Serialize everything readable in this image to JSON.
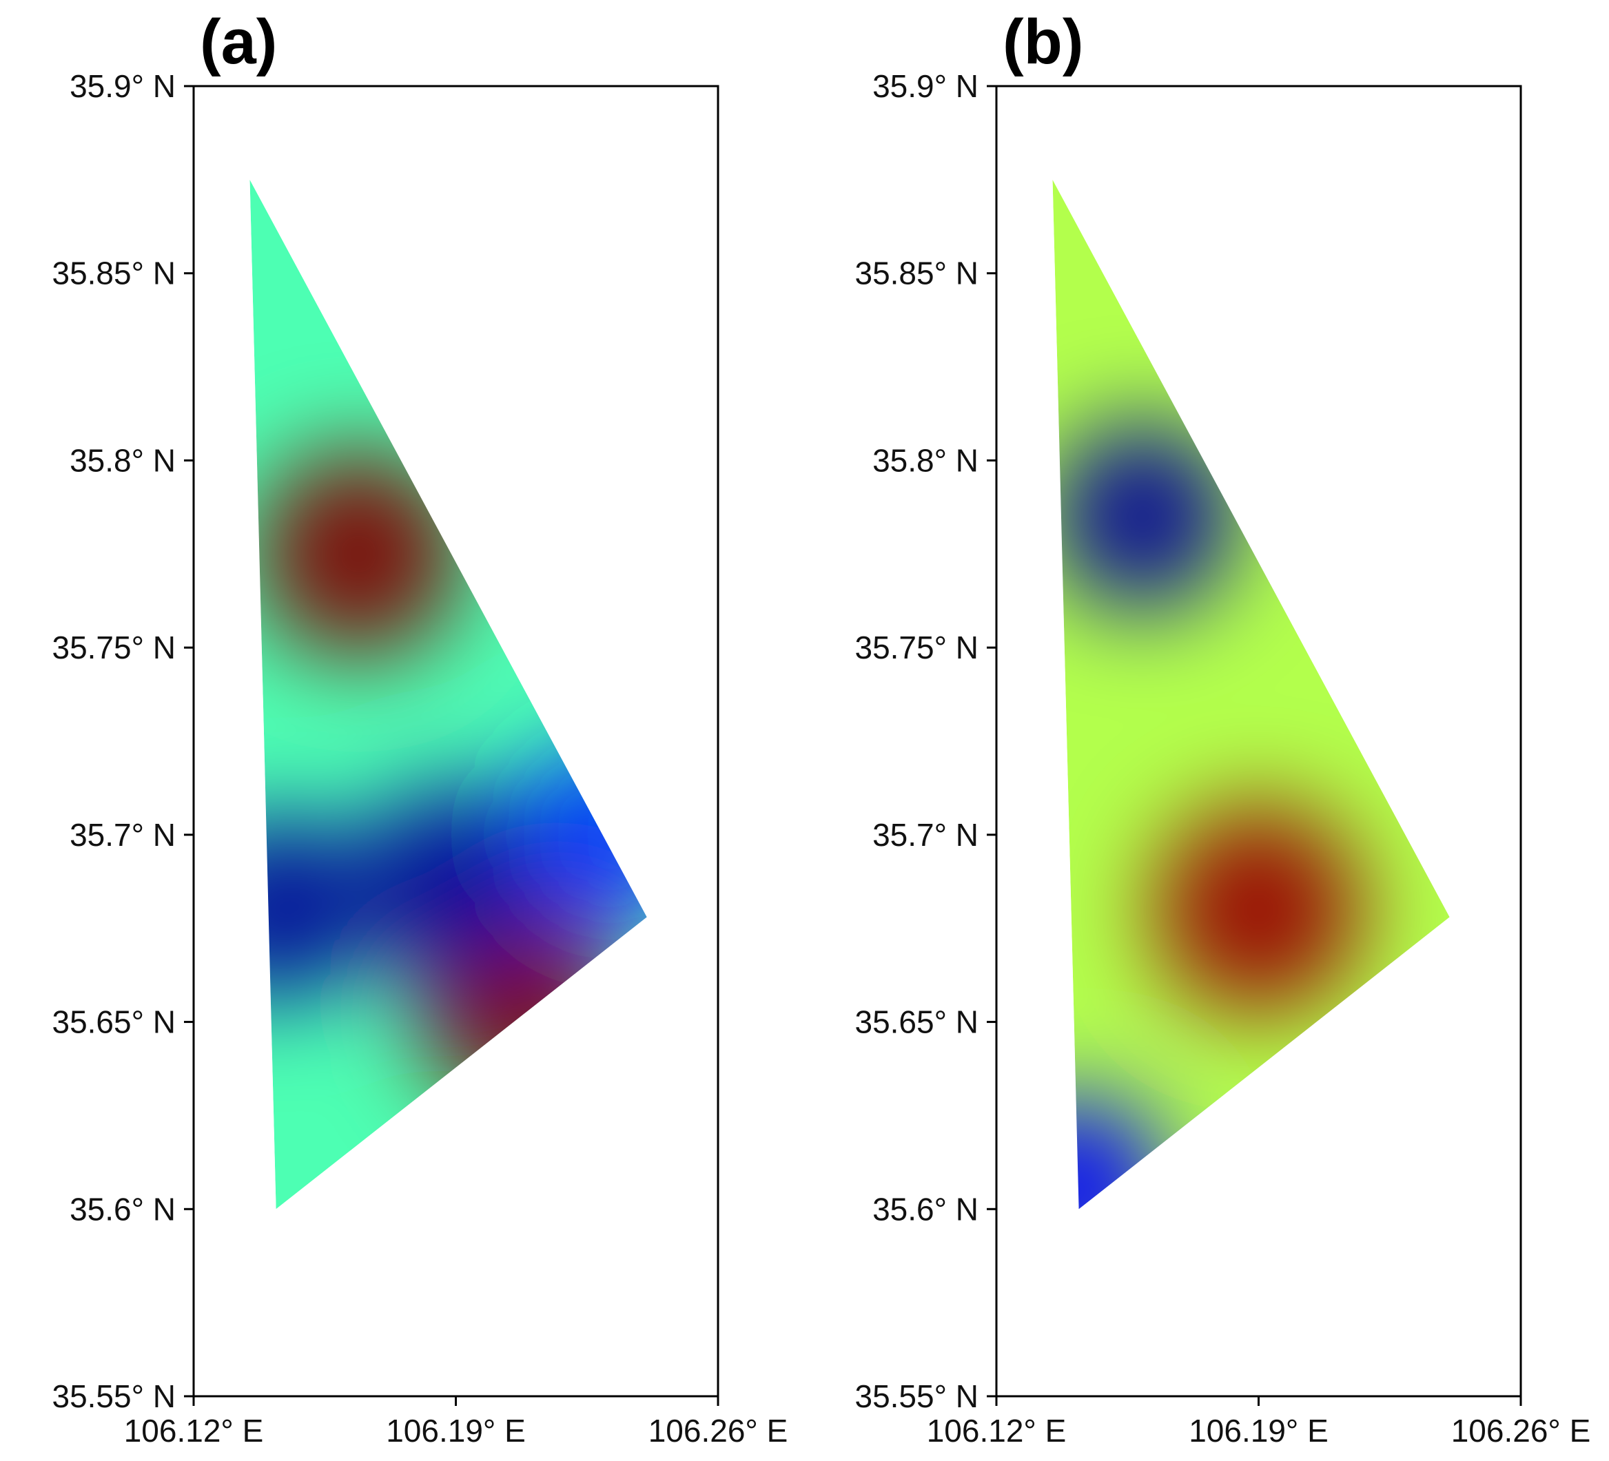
{
  "chart_data": [
    {
      "type": "heatmap",
      "panel_label": "(a)",
      "xlim": [
        106.12,
        106.26
      ],
      "ylim": [
        35.55,
        35.9
      ],
      "x_ticks": [
        {
          "value": 106.12,
          "label": "106.12° E"
        },
        {
          "value": 106.19,
          "label": "106.19° E"
        },
        {
          "value": 106.26,
          "label": "106.26° E"
        }
      ],
      "y_ticks": [
        {
          "value": 35.55,
          "label": "35.55° N"
        },
        {
          "value": 35.6,
          "label": "35.6° N"
        },
        {
          "value": 35.65,
          "label": "35.65° N"
        },
        {
          "value": 35.7,
          "label": "35.7° N"
        },
        {
          "value": 35.75,
          "label": "35.75° N"
        },
        {
          "value": 35.8,
          "label": "35.8° N"
        },
        {
          "value": 35.85,
          "label": "35.85° N"
        },
        {
          "value": 35.9,
          "label": "35.9° N"
        }
      ],
      "colormap": "jet",
      "grid": false,
      "domain_vertices": [
        {
          "lon": 106.135,
          "lat": 35.875
        },
        {
          "lon": 106.241,
          "lat": 35.678
        },
        {
          "lon": 106.142,
          "lat": 35.6
        }
      ],
      "field_features": [
        {
          "lon": 106.164,
          "lat": 35.775,
          "level": 1.0,
          "description": "high"
        },
        {
          "lon": 106.207,
          "lat": 35.655,
          "level": 1.25,
          "description": "high"
        },
        {
          "lon": 106.189,
          "lat": 35.688,
          "level": -0.95,
          "description": "low"
        },
        {
          "lon": 106.142,
          "lat": 35.68,
          "level": -0.95,
          "description": "low"
        },
        {
          "lon": 106.231,
          "lat": 35.7,
          "level": -0.65,
          "description": "low"
        }
      ]
    },
    {
      "type": "heatmap",
      "panel_label": "(b)",
      "xlim": [
        106.12,
        106.26
      ],
      "ylim": [
        35.55,
        35.9
      ],
      "x_ticks": [
        {
          "value": 106.12,
          "label": "106.12° E"
        },
        {
          "value": 106.19,
          "label": "106.19° E"
        },
        {
          "value": 106.26,
          "label": "106.26° E"
        }
      ],
      "y_ticks": [
        {
          "value": 35.55,
          "label": "35.55° N"
        },
        {
          "value": 35.6,
          "label": "35.6° N"
        },
        {
          "value": 35.65,
          "label": "35.65° N"
        },
        {
          "value": 35.7,
          "label": "35.7° N"
        },
        {
          "value": 35.75,
          "label": "35.75° N"
        },
        {
          "value": 35.8,
          "label": "35.8° N"
        },
        {
          "value": 35.85,
          "label": "35.85° N"
        },
        {
          "value": 35.9,
          "label": "35.9° N"
        }
      ],
      "colormap": "jet",
      "grid": false,
      "domain_vertices": [
        {
          "lon": 106.135,
          "lat": 35.875
        },
        {
          "lon": 106.241,
          "lat": 35.678
        },
        {
          "lon": 106.142,
          "lat": 35.6
        }
      ],
      "field_features": [
        {
          "lon": 106.159,
          "lat": 35.785,
          "level": -0.95,
          "description": "low"
        },
        {
          "lon": 106.141,
          "lat": 35.605,
          "level": -0.75,
          "description": "low"
        },
        {
          "lon": 106.19,
          "lat": 35.68,
          "level": 0.95,
          "description": "high"
        }
      ]
    }
  ]
}
